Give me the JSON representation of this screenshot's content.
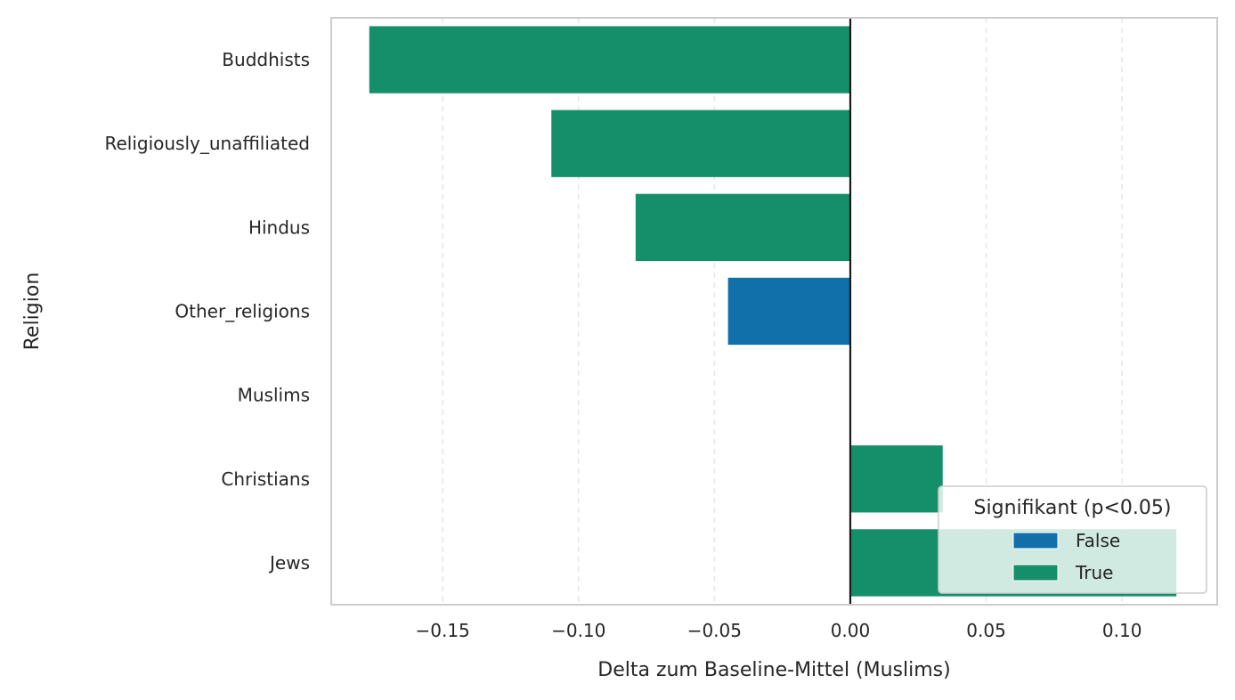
{
  "chart_data": {
    "type": "bar",
    "orientation": "horizontal",
    "categories": [
      "Buddhists",
      "Religiously_unaffiliated",
      "Hindus",
      "Other_religions",
      "Muslims",
      "Christians",
      "Jews"
    ],
    "values": [
      -0.177,
      -0.11,
      -0.079,
      -0.045,
      0.0,
      0.034,
      0.12
    ],
    "significant": [
      true,
      true,
      true,
      false,
      false,
      true,
      true
    ],
    "xlabel": "Delta zum Baseline-Mittel (Muslims)",
    "ylabel": "Religion",
    "xlim": [
      -0.191,
      0.135
    ],
    "xticks": [
      -0.15,
      -0.1,
      -0.05,
      0.0,
      0.05,
      0.1
    ],
    "xtick_labels": [
      "−0.15",
      "−0.10",
      "−0.05",
      "0.00",
      "0.05",
      "0.10"
    ],
    "grid": "x-dashed",
    "reference_line": 0.0,
    "legend": {
      "title": "Signifikant (p<0.05)",
      "placement": "lower-right",
      "entries": [
        {
          "label": "False",
          "color": "#1170aa"
        },
        {
          "label": "True",
          "color": "#148f69"
        }
      ]
    },
    "colors": {
      "true": "#148f69",
      "false": "#1170aa"
    }
  }
}
